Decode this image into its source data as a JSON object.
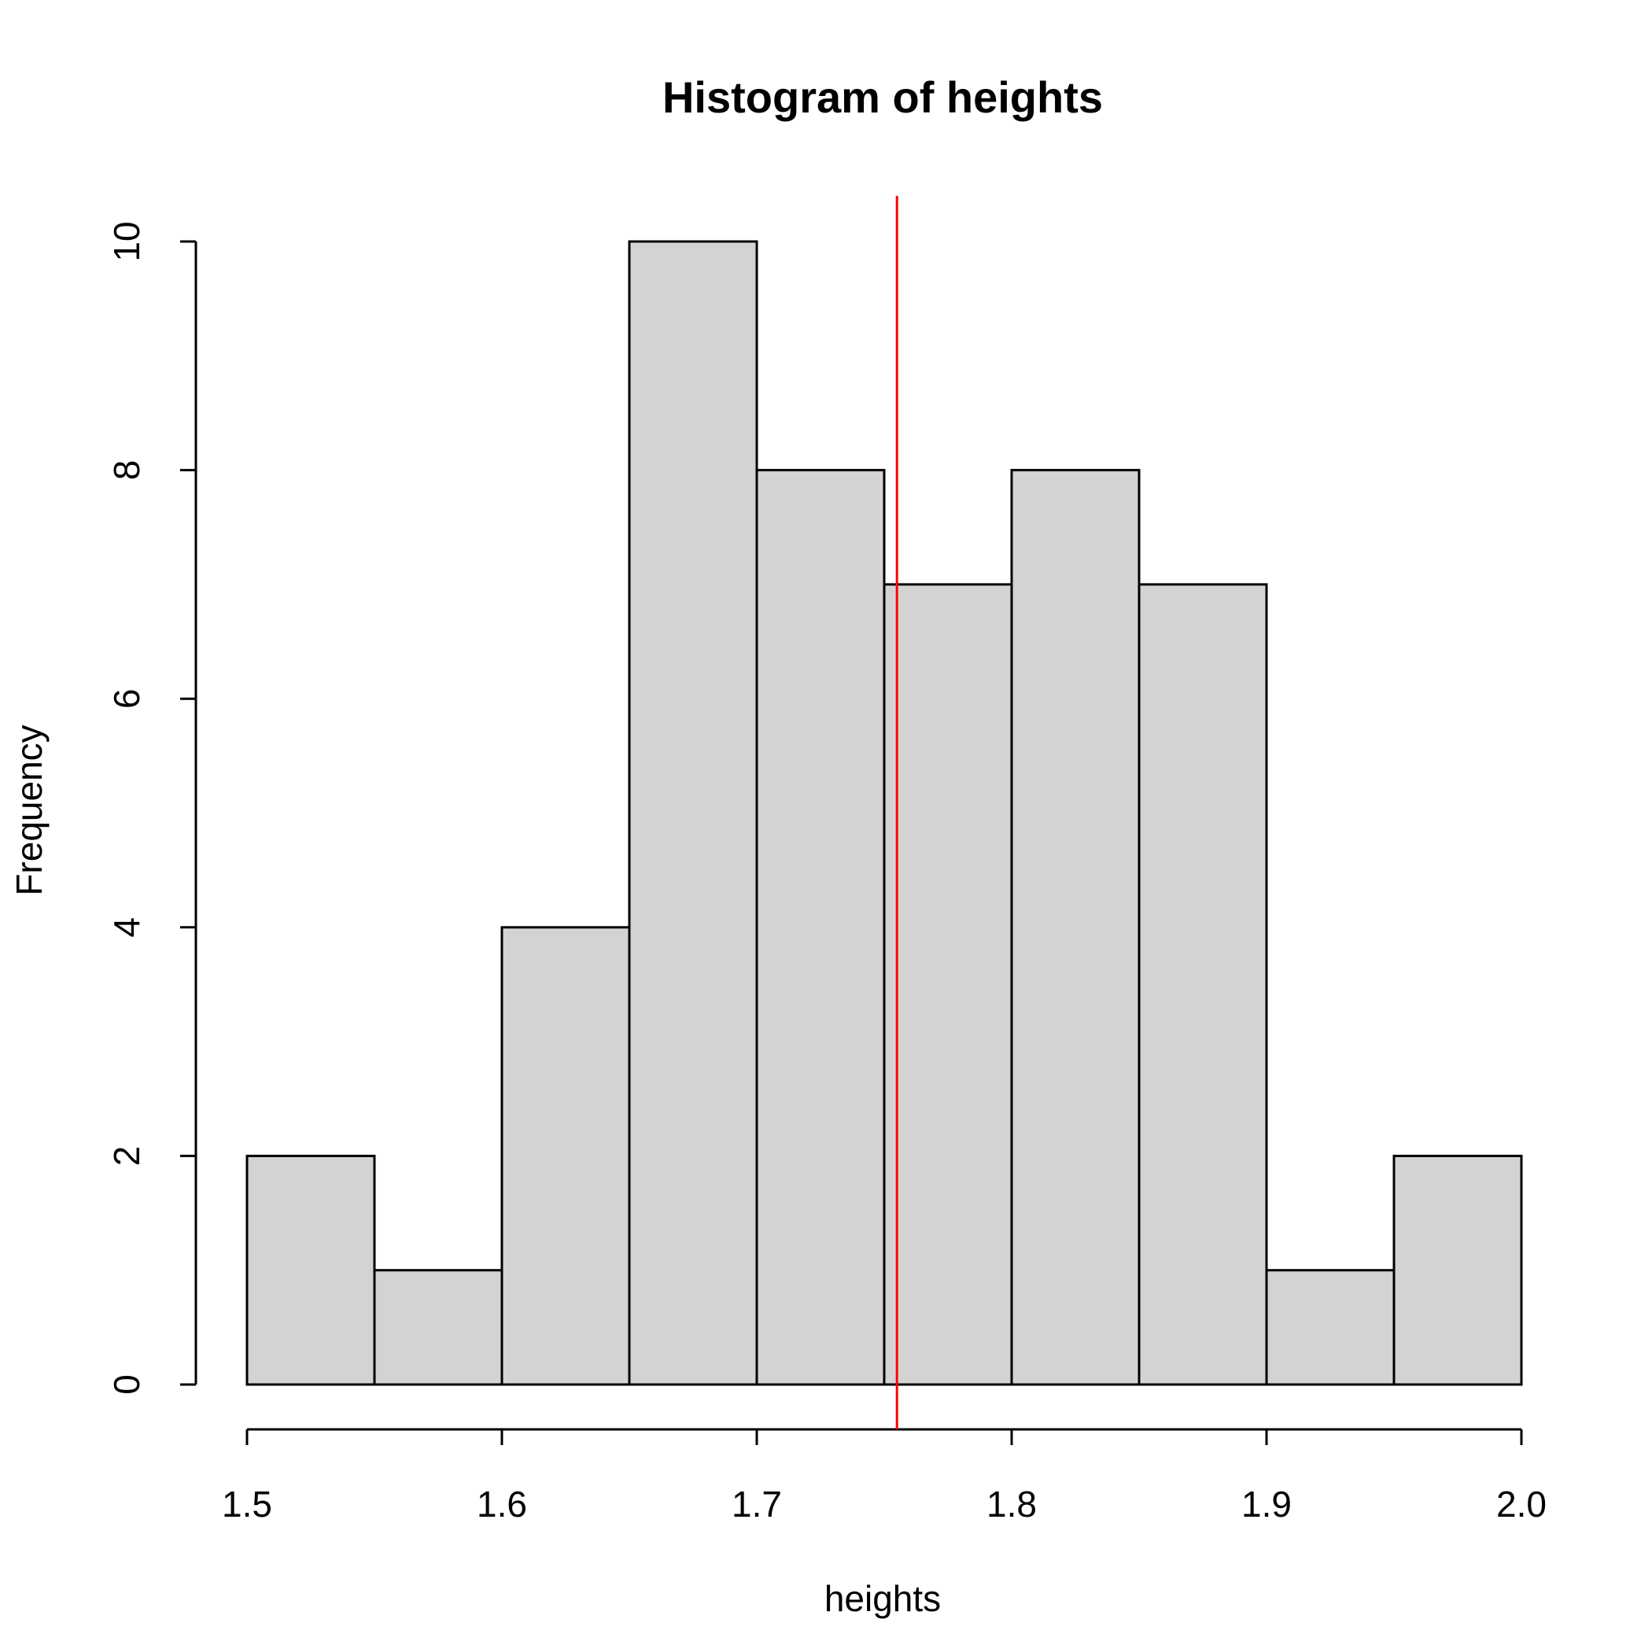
{
  "chart_data": {
    "type": "bar",
    "title": "Histogram of heights",
    "xlabel": "heights",
    "ylabel": "Frequency",
    "bins": [
      {
        "x0": 1.5,
        "x1": 1.55,
        "count": 2
      },
      {
        "x0": 1.55,
        "x1": 1.6,
        "count": 1
      },
      {
        "x0": 1.6,
        "x1": 1.65,
        "count": 4
      },
      {
        "x0": 1.65,
        "x1": 1.7,
        "count": 10
      },
      {
        "x0": 1.7,
        "x1": 1.75,
        "count": 8
      },
      {
        "x0": 1.75,
        "x1": 1.8,
        "count": 7
      },
      {
        "x0": 1.8,
        "x1": 1.85,
        "count": 8
      },
      {
        "x0": 1.85,
        "x1": 1.9,
        "count": 7
      },
      {
        "x0": 1.9,
        "x1": 1.95,
        "count": 1
      },
      {
        "x0": 1.95,
        "x1": 2.0,
        "count": 2
      }
    ],
    "xlim": [
      1.5,
      2.0
    ],
    "ylim": [
      0,
      10
    ],
    "x_ticks": [
      "1.5",
      "1.6",
      "1.7",
      "1.8",
      "1.9",
      "2.0"
    ],
    "y_ticks": [
      "0",
      "2",
      "4",
      "6",
      "8",
      "10"
    ],
    "reference_line": {
      "x": 1.755,
      "color": "#ff0000"
    },
    "bar_color": "#d3d3d3",
    "grid": false,
    "legend": "none"
  }
}
